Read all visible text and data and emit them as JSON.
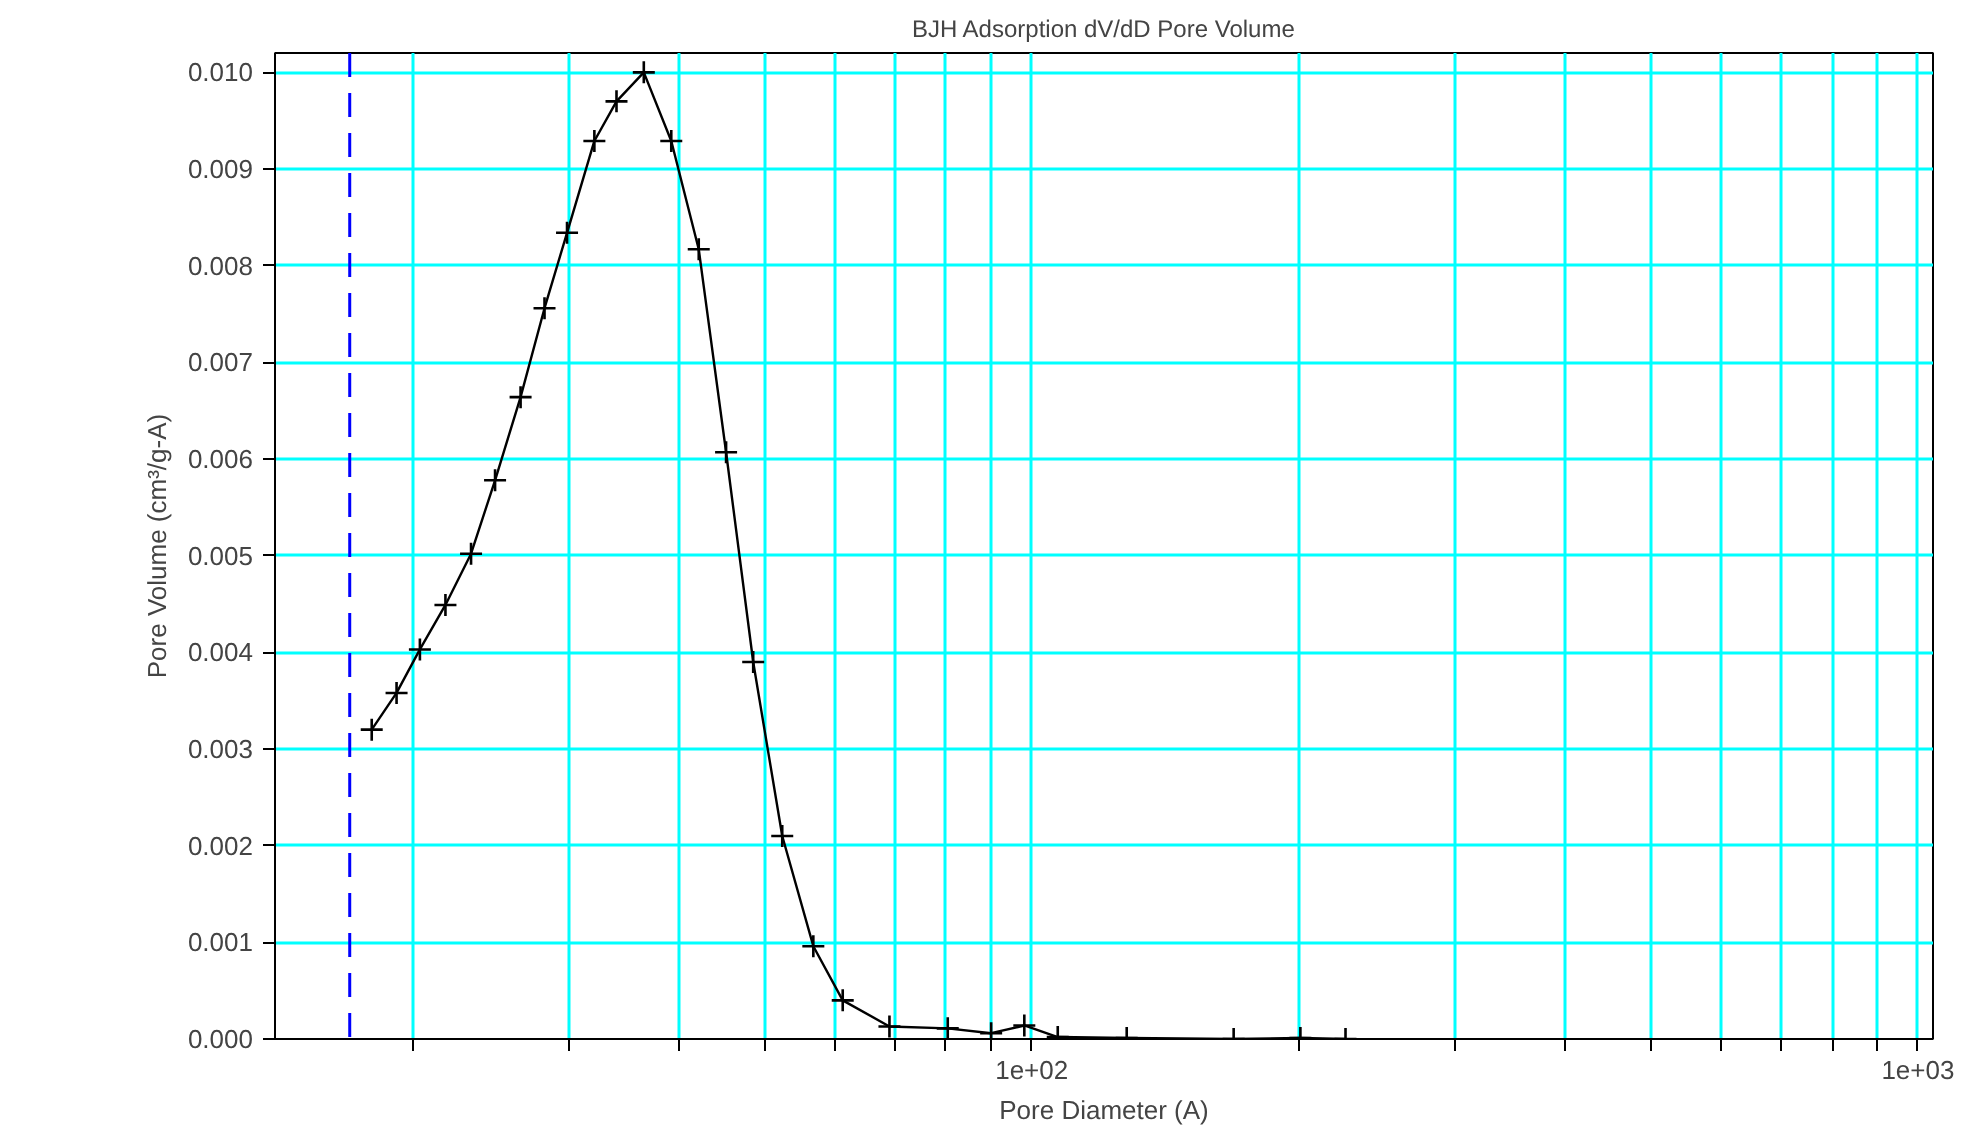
{
  "chart_data": {
    "type": "line",
    "title": "BJH Adsorption dV/dD Pore Volume",
    "xlabel": "Pore Diameter (A)",
    "ylabel": "Pore Volume (cm³/g-A)",
    "log": "x",
    "grid": true,
    "marker": "cross",
    "line_style": "solid",
    "xlim": [
      14,
      1040
    ],
    "ylim": [
      0,
      0.0102
    ],
    "xticks": [
      {
        "value": 20,
        "label": null
      },
      {
        "value": 30,
        "label": null
      },
      {
        "value": 40,
        "label": null
      },
      {
        "value": 50,
        "label": null
      },
      {
        "value": 60,
        "label": null
      },
      {
        "value": 70,
        "label": null
      },
      {
        "value": 80,
        "label": null
      },
      {
        "value": 90,
        "label": null
      },
      {
        "value": 100,
        "label": "1e+02"
      },
      {
        "value": 200,
        "label": null
      },
      {
        "value": 300,
        "label": null
      },
      {
        "value": 400,
        "label": null
      },
      {
        "value": 500,
        "label": null
      },
      {
        "value": 600,
        "label": null
      },
      {
        "value": 700,
        "label": null
      },
      {
        "value": 800,
        "label": null
      },
      {
        "value": 900,
        "label": null
      },
      {
        "value": 1000,
        "label": "1e+03"
      }
    ],
    "yticks": [
      {
        "value": 0,
        "label": "0.000"
      },
      {
        "value": 0.001,
        "label": "0.001"
      },
      {
        "value": 0.002,
        "label": "0.002"
      },
      {
        "value": 0.003,
        "label": "0.003"
      },
      {
        "value": 0.004,
        "label": "0.004"
      },
      {
        "value": 0.005,
        "label": "0.005"
      },
      {
        "value": 0.006,
        "label": "0.006"
      },
      {
        "value": 0.007,
        "label": "0.007"
      },
      {
        "value": 0.008,
        "label": "0.008"
      },
      {
        "value": 0.009,
        "label": "0.009"
      },
      {
        "value": 0.01,
        "label": "0.010"
      }
    ],
    "x": [
      18.0,
      19.2,
      20.4,
      21.8,
      23.3,
      24.8,
      26.5,
      28.2,
      29.9,
      32.1,
      34.0,
      36.5,
      39.2,
      42.1,
      45.2,
      48.5,
      52.3,
      56.7,
      61.2,
      69.1,
      80.4,
      90.0,
      98.1,
      107,
      128,
      169,
      201,
      226
    ],
    "series": [
      {
        "color": "#000000",
        "values": [
          0.0032,
          0.00358,
          0.00403,
          0.00449,
          0.00502,
          0.00578,
          0.00664,
          0.00756,
          0.00834,
          0.00929,
          0.0097,
          0.01,
          0.00929,
          0.00817,
          0.00607,
          0.0039,
          0.0021,
          0.00096,
          0.0004,
          0.00013,
          0.00011,
          6e-05,
          0.00014,
          2e-05,
          1e-05,
          0.0,
          1e-05,
          0.0
        ]
      }
    ],
    "ref_lines": [
      {
        "axis": "x",
        "value": 17,
        "label": null,
        "color": "#0000ff",
        "line_style": "dashed"
      }
    ]
  }
}
